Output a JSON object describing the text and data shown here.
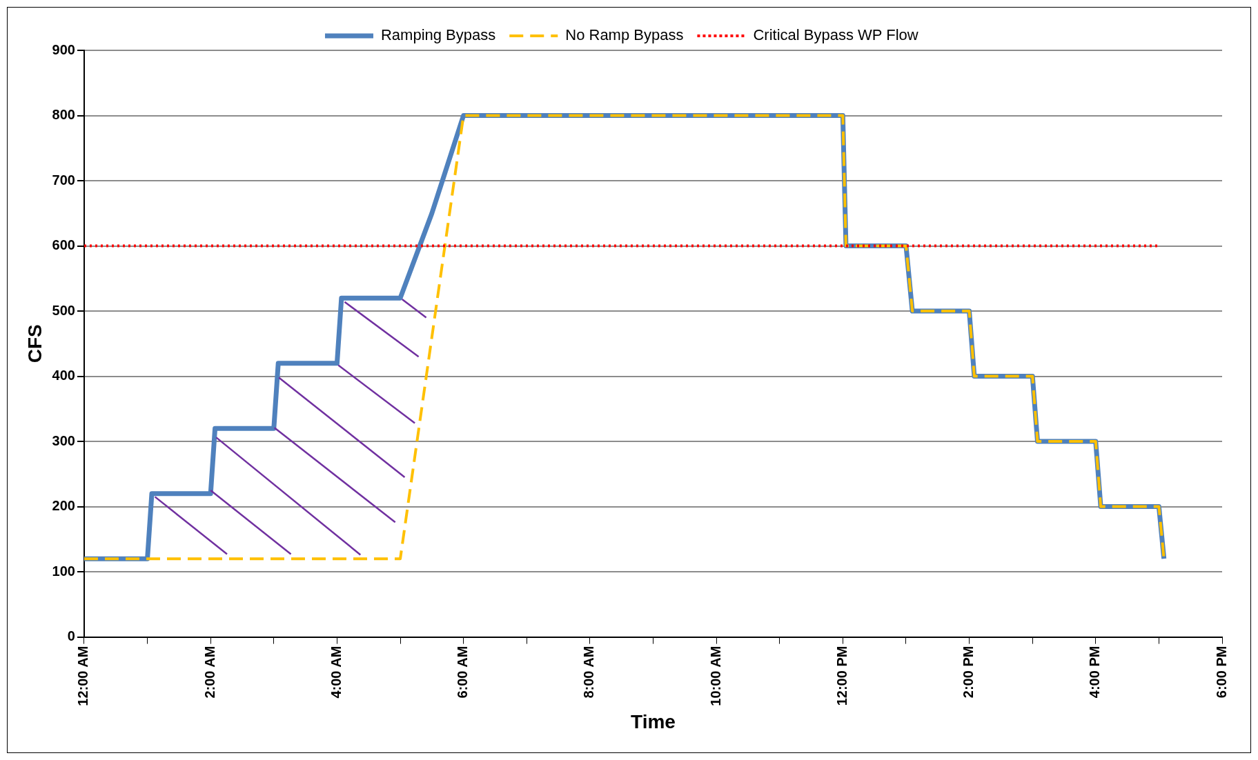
{
  "chart_data": {
    "type": "line",
    "xlabel": "Time",
    "ylabel": "CFS",
    "xlim": [
      0,
      18
    ],
    "xticks": [
      {
        "value": 0,
        "label": "12:00 AM"
      },
      {
        "value": 1,
        "label": null
      },
      {
        "value": 2,
        "label": "2:00 AM"
      },
      {
        "value": 3,
        "label": null
      },
      {
        "value": 4,
        "label": "4:00 AM"
      },
      {
        "value": 5,
        "label": null
      },
      {
        "value": 6,
        "label": "6:00 AM"
      },
      {
        "value": 7,
        "label": null
      },
      {
        "value": 8,
        "label": "8:00 AM"
      },
      {
        "value": 9,
        "label": null
      },
      {
        "value": 10,
        "label": "10:00 AM"
      },
      {
        "value": 11,
        "label": null
      },
      {
        "value": 12,
        "label": "12:00 PM"
      },
      {
        "value": 13,
        "label": null
      },
      {
        "value": 14,
        "label": "2:00 PM"
      },
      {
        "value": 15,
        "label": null
      },
      {
        "value": 16,
        "label": "4:00 PM"
      },
      {
        "value": 17,
        "label": null
      },
      {
        "value": 18,
        "label": "6:00 PM"
      }
    ],
    "ylim": [
      0,
      900
    ],
    "yticks": [
      0,
      100,
      200,
      300,
      400,
      500,
      600,
      700,
      800,
      900
    ],
    "grid": "y",
    "legend": "top",
    "marker": "none",
    "series": [
      {
        "name": "Ramping Bypass",
        "color": "#4f81bd",
        "line_style": "solid",
        "x": [
          0,
          1,
          1.07,
          2,
          2.07,
          3,
          3.07,
          4,
          4.07,
          5,
          5.5,
          6,
          12,
          12.05,
          13,
          13.1,
          14,
          14.08,
          15,
          15.08,
          16,
          16.08,
          17,
          17.08
        ],
        "values": [
          120,
          120,
          220,
          220,
          320,
          320,
          420,
          420,
          520,
          520,
          650,
          800,
          800,
          600,
          600,
          500,
          500,
          400,
          400,
          300,
          300,
          200,
          200,
          120
        ]
      },
      {
        "name": "No Ramp Bypass",
        "color": "#ffc000",
        "line_style": "dashed",
        "x": [
          0,
          5,
          6,
          12,
          12.05,
          13,
          13.1,
          14,
          14.08,
          15,
          15.08,
          16,
          16.08,
          17,
          17.08
        ],
        "values": [
          120,
          120,
          800,
          800,
          600,
          600,
          500,
          500,
          400,
          400,
          300,
          300,
          200,
          200,
          120
        ]
      },
      {
        "name": "Critical Bypass WP Flow",
        "color": "#ff0000",
        "line_style": "dotted",
        "x": [
          0,
          17
        ],
        "values": [
          600,
          600
        ]
      }
    ]
  }
}
